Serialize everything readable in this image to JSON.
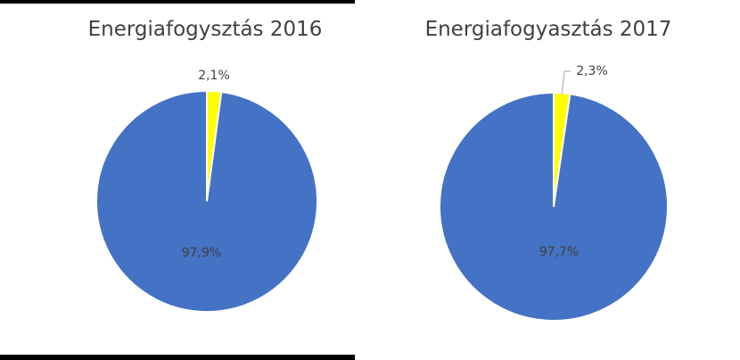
{
  "chart_data": [
    {
      "type": "pie",
      "title": "Energiafogysztás 2016",
      "slices": [
        {
          "value": 2.1,
          "label": "2,1%",
          "color": "#ffff00"
        },
        {
          "value": 97.9,
          "label": "97,9%",
          "color": "#4472c4"
        }
      ]
    },
    {
      "type": "pie",
      "title": "Energiafogyasztás 2017",
      "slices": [
        {
          "value": 2.3,
          "label": "2,3%",
          "color": "#ffff00"
        },
        {
          "value": 97.7,
          "label": "97,7%",
          "color": "#4472c4"
        }
      ]
    }
  ]
}
